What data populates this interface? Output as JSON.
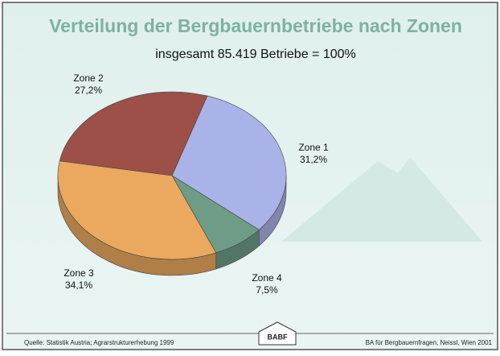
{
  "chart_data": {
    "type": "pie",
    "title": "Verteilung der Bergbauernbetriebe nach Zonen",
    "subtitle": "insgesamt 85.419 Betriebe = 100%",
    "categories": [
      "Zone 1",
      "Zone 4",
      "Zone 3",
      "Zone 2"
    ],
    "values": [
      31.2,
      7.5,
      34.1,
      27.2
    ],
    "value_labels": [
      "31,2%",
      "7,5%",
      "34,1%",
      "27,2%"
    ],
    "colors": [
      "#aab3e8",
      "#6e9c86",
      "#eaa95e",
      "#9c5048"
    ],
    "source": "Quelle: Statistik Austria; Agrarstrukturerhebung 1999",
    "credit": "BA für Bergbauernfragen, Neissl, Wien 2001",
    "logo": "BABF"
  }
}
